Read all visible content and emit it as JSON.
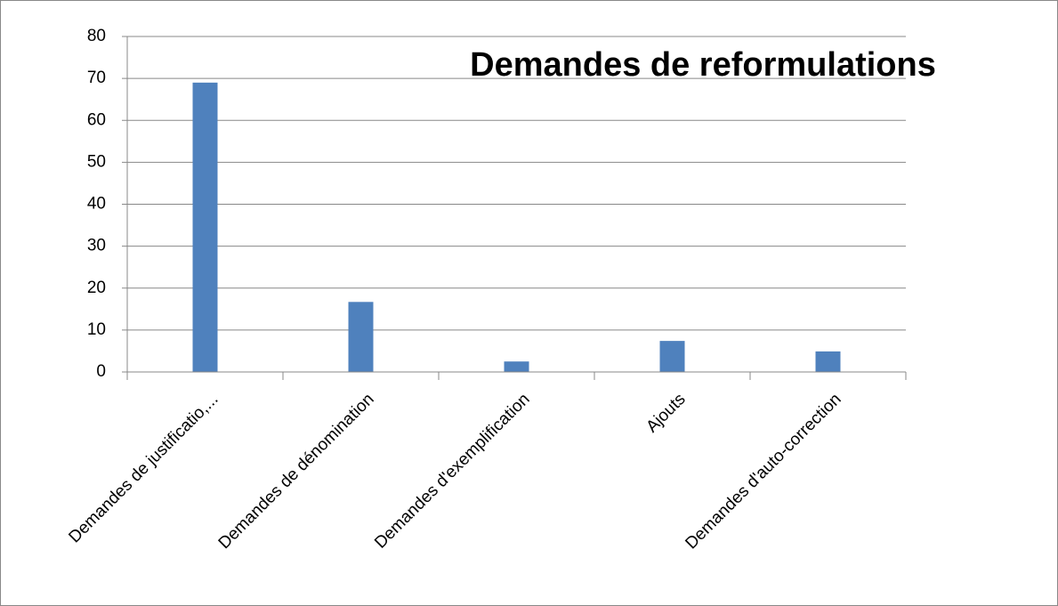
{
  "chart_data": {
    "type": "bar",
    "title": "Demandes de reformulations",
    "categories": [
      "Demandes de justificatio,...",
      "Demandes de dénomination",
      "Demandes d'exemplification",
      "Ajouts",
      "Demandes d'auto-correction"
    ],
    "values": [
      69,
      16.7,
      2.5,
      7.4,
      4.9
    ],
    "color": "#4f81bd",
    "ylim": [
      0,
      80
    ],
    "yticks": [
      0,
      10,
      20,
      30,
      40,
      50,
      60,
      70,
      80
    ],
    "grid": true
  }
}
